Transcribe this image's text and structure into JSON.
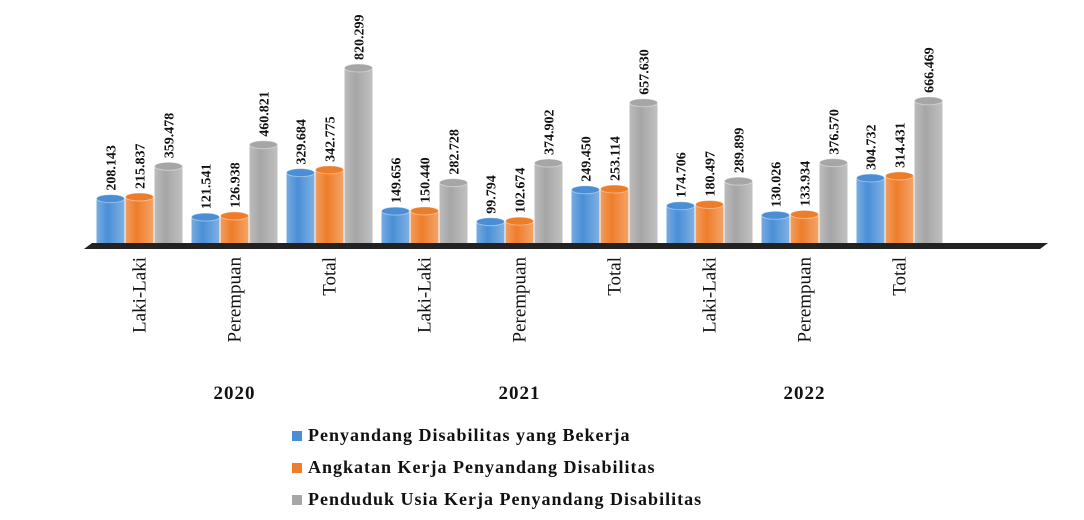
{
  "chart_data": {
    "type": "bar",
    "categories": [
      "Laki-Laki",
      "Perempuan",
      "Total",
      "Laki-Laki",
      "Perempuan",
      "Total",
      "Laki-Laki",
      "Perempuan",
      "Total"
    ],
    "groups": [
      "2020",
      "2021",
      "2022"
    ],
    "series": [
      {
        "name": "Penyandang Disabilitas yang Bekerja",
        "color": "#4a8fd6",
        "values": [
          208143,
          121541,
          329684,
          149656,
          99794,
          249450,
          174706,
          130026,
          304732
        ],
        "value_labels": [
          "208.143",
          "121.541",
          "329.684",
          "149.656",
          "99.794",
          "249.450",
          "174.706",
          "130.026",
          "304.732"
        ]
      },
      {
        "name": "Angkatan Kerja Penyandang Disabilitas",
        "color": "#ee7d2a",
        "values": [
          215837,
          126938,
          342775,
          150440,
          102674,
          253114,
          180497,
          133934,
          314431
        ],
        "value_labels": [
          "215.837",
          "126.938",
          "342.775",
          "150.440",
          "102.674",
          "253.114",
          "180.497",
          "133.934",
          "314.431"
        ]
      },
      {
        "name": "Penduduk Usia Kerja Penyandang Disabilitas",
        "color": "#a6a6a6",
        "values": [
          359478,
          460821,
          820299,
          282728,
          374902,
          657630,
          289899,
          376570,
          666469
        ],
        "value_labels": [
          "359.478",
          "460.821",
          "820.299",
          "282.728",
          "374.902",
          "657.630",
          "289.899",
          "376.570",
          "666.469"
        ]
      }
    ],
    "legend": "bottom"
  }
}
